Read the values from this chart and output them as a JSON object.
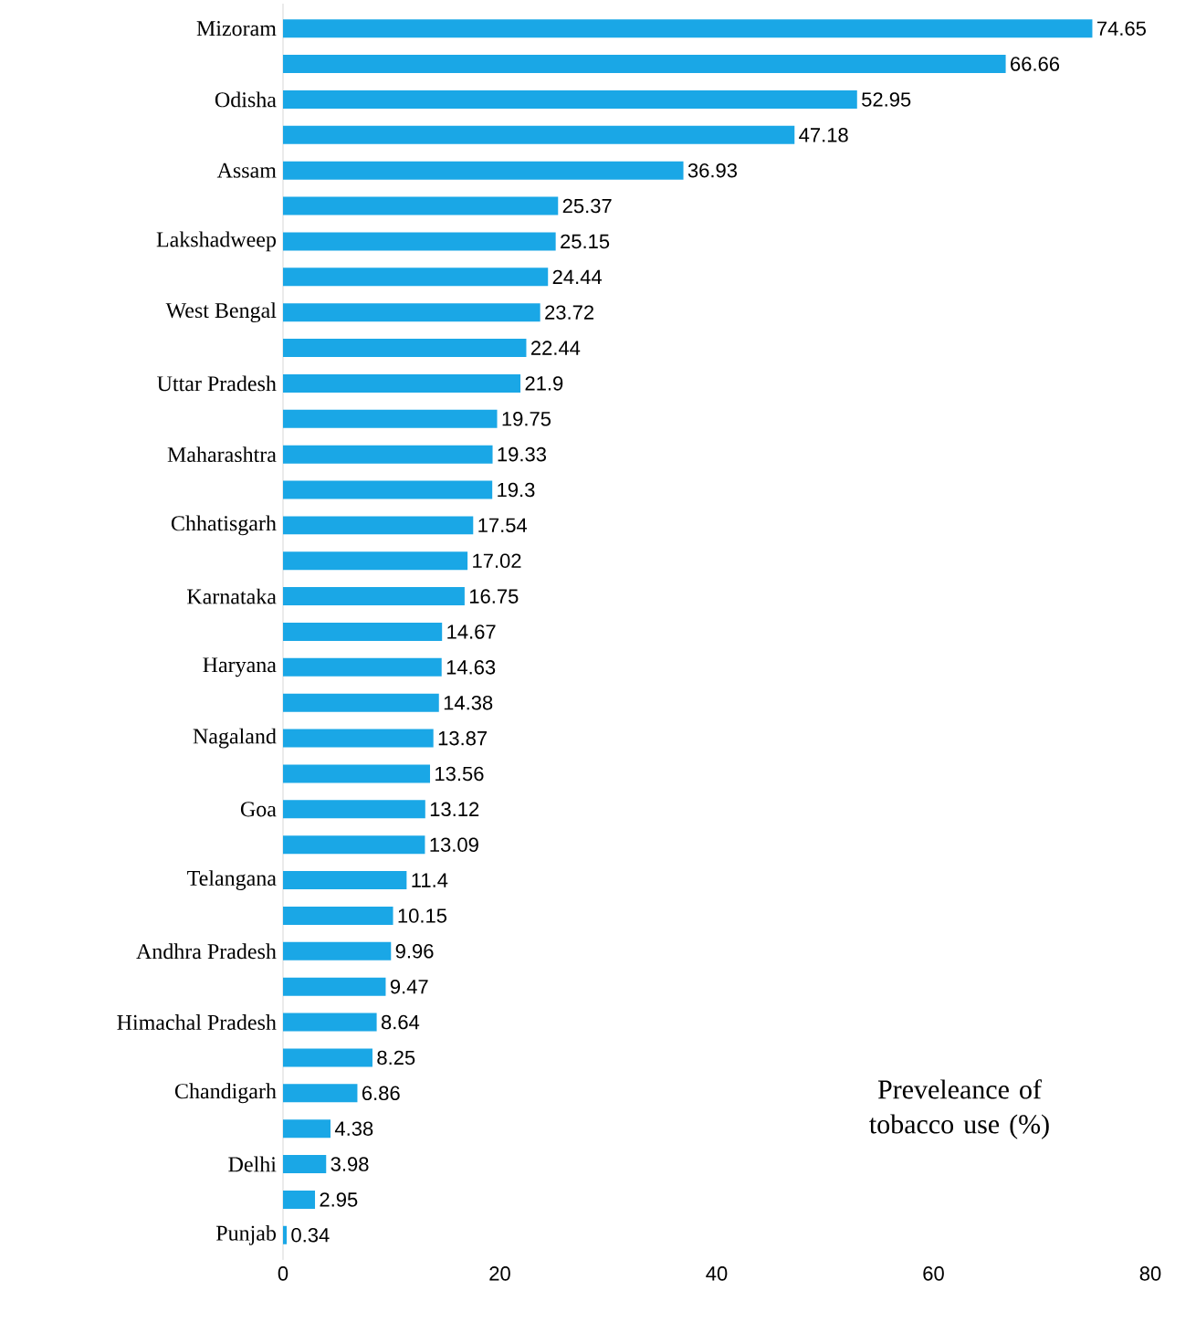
{
  "chart_data": {
    "type": "bar",
    "orientation": "horizontal",
    "color": "#1aa7e6",
    "categories": [
      "Mizoram",
      null,
      "Odisha",
      null,
      "Assam",
      null,
      "Lakshadweep",
      null,
      "West Bengal",
      null,
      "Uttar Pradesh",
      null,
      "Maharashtra",
      null,
      "Chhatisgarh",
      null,
      "Karnataka",
      null,
      "Haryana",
      null,
      "Nagaland",
      null,
      "Goa",
      null,
      "Telangana",
      null,
      "Andhra Pradesh",
      null,
      "Himachal Pradesh",
      null,
      "Chandigarh",
      null,
      "Delhi",
      null,
      "Punjab"
    ],
    "values": [
      74.65,
      66.66,
      52.95,
      47.18,
      36.93,
      25.37,
      25.15,
      24.44,
      23.72,
      22.44,
      21.9,
      19.75,
      19.33,
      19.3,
      17.54,
      17.02,
      16.75,
      14.67,
      14.63,
      14.38,
      13.87,
      13.56,
      13.12,
      13.09,
      11.4,
      10.15,
      9.96,
      9.47,
      8.64,
      8.25,
      6.86,
      4.38,
      3.98,
      2.95,
      0.34
    ],
    "data_labels": true,
    "xlim": [
      0,
      80
    ],
    "xticks": [
      0,
      20,
      40,
      60,
      80
    ],
    "grid": false,
    "annotations": [
      "Preveleance of tobacco use (%)"
    ]
  }
}
